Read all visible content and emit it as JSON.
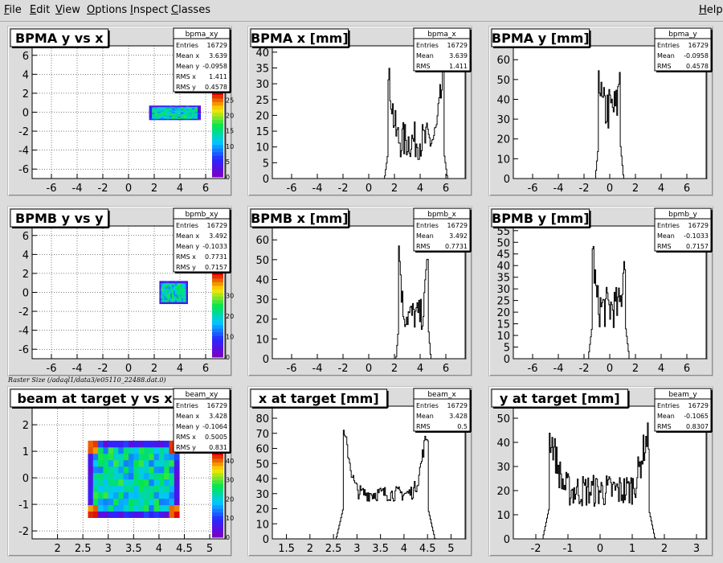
{
  "menu": [
    {
      "label": "File",
      "underline": "F",
      "rest": "ile"
    },
    {
      "label": "Edit",
      "underline": "E",
      "rest": "dit"
    },
    {
      "label": "View",
      "underline": "V",
      "rest": "iew"
    },
    {
      "label": "Options",
      "underline": "O",
      "rest": "ptions"
    },
    {
      "label": "Inspect",
      "underline": "I",
      "rest": "nspect"
    },
    {
      "label": "Classes",
      "underline": "C",
      "rest": "lasses"
    }
  ],
  "help": {
    "underline": "H",
    "rest": "elp"
  },
  "raster_text": "Raster Size (/adaql1/data3/e05110_22488.dat.0)",
  "chart_data": [
    {
      "type": "heatmap",
      "title": "BPMA y vs x",
      "stats": {
        "name": "bpma_xy",
        "rows": [
          [
            "Entries",
            "16729"
          ],
          [
            "Mean x",
            "3.639"
          ],
          [
            "Mean y",
            "-0.0958"
          ],
          [
            "RMS x",
            "1.411"
          ],
          [
            "RMS y",
            "0.4578"
          ]
        ]
      },
      "xlim": [
        -7.5,
        7.5
      ],
      "ylim": [
        -7,
        7
      ],
      "xticks": [
        -6,
        -4,
        -2,
        0,
        2,
        4,
        6
      ],
      "yticks": [
        -6,
        -4,
        -2,
        0,
        2,
        4,
        6
      ],
      "zticks": [
        0,
        5,
        10,
        15,
        20,
        25
      ],
      "zmax": 28,
      "box": {
        "x": [
          1.6,
          5.6
        ],
        "y": [
          -0.8,
          0.7
        ]
      }
    },
    {
      "type": "bar",
      "title": "BPMA x [mm]",
      "stats": {
        "name": "bpma_x",
        "rows": [
          [
            "Entries",
            "16729"
          ],
          [
            "Mean",
            "3.639"
          ],
          [
            "RMS",
            "1.411"
          ]
        ]
      },
      "xlim": [
        -7.5,
        7.5
      ],
      "ylim": [
        0,
        42
      ],
      "xticks": [
        -6,
        -4,
        -2,
        0,
        2,
        4,
        6
      ],
      "yticks": [
        0,
        5,
        10,
        15,
        20,
        25,
        30,
        35,
        40
      ],
      "shape": {
        "lo": 1.5,
        "hi": 5.8,
        "edge_peak": 30,
        "plateau": 12,
        "noise": 6,
        "ramp": 0.3
      }
    },
    {
      "type": "bar",
      "title": "BPMA y [mm]",
      "stats": {
        "name": "bpma_y",
        "rows": [
          [
            "Entries",
            "16729"
          ],
          [
            "Mean",
            "-0.0958"
          ],
          [
            "RMS",
            "0.4578"
          ]
        ]
      },
      "xlim": [
        -7.5,
        7.5
      ],
      "ylim": [
        0,
        67
      ],
      "xticks": [
        -6,
        -4,
        -2,
        0,
        2,
        4,
        6
      ],
      "yticks": [
        0,
        10,
        20,
        30,
        40,
        50,
        60
      ],
      "shape": {
        "lo": -0.9,
        "hi": 0.8,
        "edge_peak": 58,
        "plateau": 35,
        "noise": 12,
        "ramp": 0.25
      }
    },
    {
      "type": "heatmap",
      "title": "BPMB y vs y",
      "stats": {
        "name": "bpmb_xy",
        "rows": [
          [
            "Entries",
            "16729"
          ],
          [
            "Mean x",
            "3.492"
          ],
          [
            "Mean y",
            "-0.1033"
          ],
          [
            "RMS x",
            "0.7731"
          ],
          [
            "RMS y",
            "0.7157"
          ]
        ]
      },
      "xlim": [
        -7.5,
        7.5
      ],
      "ylim": [
        -7,
        7
      ],
      "xticks": [
        -6,
        -4,
        -2,
        0,
        2,
        4,
        6
      ],
      "yticks": [
        -6,
        -4,
        -2,
        0,
        2,
        4,
        6
      ],
      "zticks": [
        0,
        10,
        20,
        30
      ],
      "zmax": 42,
      "box": {
        "x": [
          2.4,
          4.6
        ],
        "y": [
          -1.2,
          1.2
        ]
      }
    },
    {
      "type": "bar",
      "title": "BPMB x [mm]",
      "stats": {
        "name": "bpmb_x",
        "rows": [
          [
            "Entries",
            "16729"
          ],
          [
            "Mean",
            "3.492"
          ],
          [
            "RMS",
            "0.7731"
          ]
        ]
      },
      "xlim": [
        -7.5,
        7.5
      ],
      "ylim": [
        0,
        67
      ],
      "xticks": [
        -6,
        -4,
        -2,
        0,
        2,
        4,
        6
      ],
      "yticks": [
        0,
        10,
        20,
        30,
        40,
        50,
        60
      ],
      "shape": {
        "lo": 2.3,
        "hi": 4.6,
        "edge_peak": 55,
        "plateau": 22,
        "noise": 8,
        "ramp": 0.2
      }
    },
    {
      "type": "bar",
      "title": "BPMB y [mm]",
      "stats": {
        "name": "bpmb_y",
        "rows": [
          [
            "Entries",
            "16729"
          ],
          [
            "Mean",
            "-0.1033"
          ],
          [
            "RMS",
            "0.7157"
          ]
        ]
      },
      "xlim": [
        -7.5,
        7.5
      ],
      "ylim": [
        0,
        57
      ],
      "xticks": [
        -6,
        -4,
        -2,
        0,
        2,
        4,
        6
      ],
      "yticks": [
        0,
        5,
        10,
        15,
        20,
        25,
        30,
        35,
        40,
        45,
        50,
        55
      ],
      "shape": {
        "lo": -1.4,
        "hi": 1.2,
        "edge_peak": 47,
        "plateau": 22,
        "noise": 9,
        "ramp": 0.3
      }
    },
    {
      "type": "heatmap",
      "title": "beam at target y vs x",
      "stats": {
        "name": "beam_xy",
        "rows": [
          [
            "Entries",
            "16729"
          ],
          [
            "Mean x",
            "3.428"
          ],
          [
            "Mean y",
            "-0.1064"
          ],
          [
            "RMS x",
            "0.5005"
          ],
          [
            "RMS y",
            "0.831"
          ]
        ]
      },
      "xlim": [
        1.5,
        5.3
      ],
      "ylim": [
        -2.3,
        2.7
      ],
      "xticks": [
        2,
        2.5,
        3,
        3.5,
        4,
        4.5,
        5
      ],
      "yticks": [
        -2,
        -1,
        0,
        1,
        2
      ],
      "zticks": [
        0,
        10,
        20,
        30,
        40
      ],
      "zmax": 45,
      "box": {
        "x": [
          2.6,
          4.4
        ],
        "y": [
          -1.5,
          1.4
        ]
      }
    },
    {
      "type": "bar",
      "title": "x at target [mm]",
      "stats": {
        "name": "beam_x",
        "rows": [
          [
            "Entries",
            "16729"
          ],
          [
            "Mean",
            "3.428"
          ],
          [
            "RMS",
            "0.5"
          ]
        ]
      },
      "xlim": [
        1.2,
        5.3
      ],
      "ylim": [
        0,
        88
      ],
      "xticks": [
        1.5,
        2,
        2.5,
        3,
        3.5,
        4,
        4.5,
        5
      ],
      "yticks": [
        0,
        10,
        20,
        30,
        40,
        50,
        60,
        70,
        80
      ],
      "shape": {
        "lo": 2.7,
        "hi": 4.5,
        "edge_peak": 68,
        "plateau": 30,
        "noise": 5,
        "ramp": 0.15,
        "wide": true
      }
    },
    {
      "type": "bar",
      "title": "y at target [mm]",
      "stats": {
        "name": "beam_y",
        "rows": [
          [
            "Entries",
            "16729"
          ],
          [
            "Mean",
            "-0.1065"
          ],
          [
            "RMS",
            "0.8307"
          ]
        ]
      },
      "xlim": [
        -2.7,
        3.3
      ],
      "ylim": [
        0,
        55
      ],
      "xticks": [
        -2,
        -1,
        0,
        1,
        2,
        3
      ],
      "yticks": [
        0,
        10,
        20,
        30,
        40,
        50
      ],
      "shape": {
        "lo": -1.6,
        "hi": 1.5,
        "edge_peak": 42,
        "plateau": 20,
        "noise": 7,
        "ramp": 0.2,
        "wide": true
      }
    }
  ]
}
